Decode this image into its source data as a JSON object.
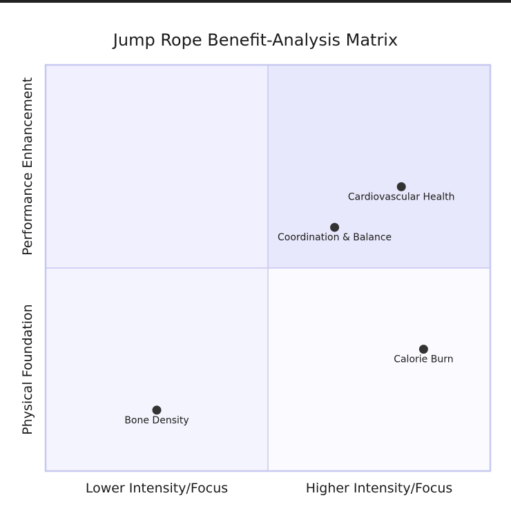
{
  "chart_data": {
    "type": "scatter",
    "subtype": "quadrant",
    "title": "Jump Rope Benefit-Analysis Matrix",
    "x_axis": {
      "low": "Lower Intensity/Focus",
      "high": "Higher Intensity/Focus"
    },
    "y_axis": {
      "low": "Physical Foundation",
      "high": "Performance Enhancement"
    },
    "xlim": [
      0,
      1
    ],
    "ylim": [
      0,
      1
    ],
    "quadrants": [
      {
        "position": "top-right",
        "label": "",
        "color": "#e8e8fc"
      },
      {
        "position": "top-left",
        "label": "",
        "color": "#f0f0fe"
      },
      {
        "position": "bottom-left",
        "label": "",
        "color": "#f4f4fe"
      },
      {
        "position": "bottom-right",
        "label": "",
        "color": "#fafaff"
      }
    ],
    "points": [
      {
        "label": "Cardiovascular Health",
        "x": 0.8,
        "y": 0.7
      },
      {
        "label": "Coordination & Balance",
        "x": 0.65,
        "y": 0.6
      },
      {
        "label": "Calorie Burn",
        "x": 0.85,
        "y": 0.3
      },
      {
        "label": "Bone Density",
        "x": 0.25,
        "y": 0.15
      }
    ],
    "border_color": "#c8c8f0",
    "point_color": "#333333",
    "text_color": "#1a1a1a"
  }
}
